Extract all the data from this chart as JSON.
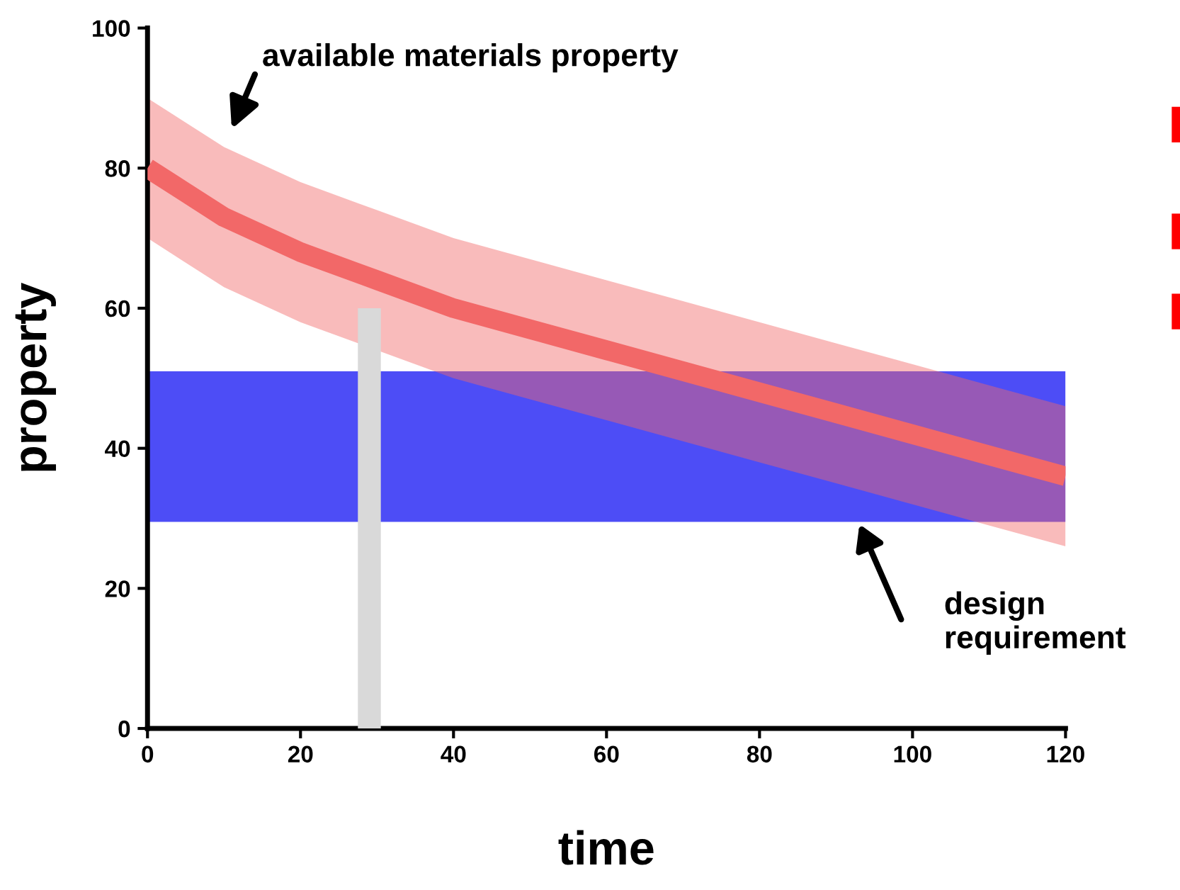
{
  "chart_data": {
    "type": "line",
    "xlabel": "time",
    "ylabel": "property",
    "xlim": [
      0,
      120
    ],
    "ylim": [
      0,
      100
    ],
    "xticks": [
      0,
      20,
      40,
      60,
      80,
      100,
      120
    ],
    "yticks": [
      0,
      20,
      40,
      60,
      80,
      100
    ],
    "grid": false,
    "marker": "none",
    "line_style": "solid",
    "series": [
      {
        "color": "#f26868",
        "x": [
          0,
          10,
          20,
          30,
          40,
          50,
          60,
          70,
          80,
          90,
          100,
          110,
          120
        ],
        "values": [
          80,
          73,
          68,
          64,
          60,
          57,
          54,
          51,
          48,
          45,
          42,
          39,
          36
        ],
        "lower": [
          70,
          63,
          58,
          54,
          50,
          47,
          44,
          41,
          38,
          35,
          32,
          29,
          26
        ],
        "upper": [
          90,
          83,
          78,
          74,
          70,
          67,
          64,
          61,
          58,
          55,
          52,
          49,
          46
        ]
      },
      {
        "type": "bar",
        "color": "#d9d9d9",
        "x": [
          29
        ],
        "values": [
          60
        ]
      }
    ],
    "bands": [
      {
        "axis": "y",
        "from": 29.5,
        "to": 51,
        "color": "#3a3af5"
      }
    ],
    "annotations": [
      {
        "text": "available materials property",
        "x": 10,
        "y": 83
      },
      "design\nrequirement"
    ]
  }
}
